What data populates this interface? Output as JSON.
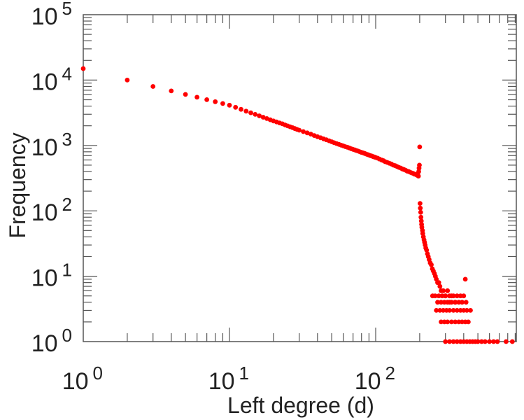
{
  "chart_data": {
    "type": "scatter",
    "title": "",
    "xlabel": "Left degree (d)",
    "ylabel": "Frequency",
    "xscale": "log",
    "yscale": "log",
    "xlim": [
      1,
      930
    ],
    "ylim": [
      1,
      100000
    ],
    "grid": false,
    "legend": "none",
    "marker_color": "#ff0000",
    "axis_color": "#555555",
    "x_ticks": [
      {
        "base": "10",
        "exp": "0",
        "value": 1
      },
      {
        "base": "10",
        "exp": "1",
        "value": 10
      },
      {
        "base": "10",
        "exp": "2",
        "value": 100
      }
    ],
    "y_ticks": [
      {
        "base": "10",
        "exp": "0",
        "value": 1
      },
      {
        "base": "10",
        "exp": "1",
        "value": 10
      },
      {
        "base": "10",
        "exp": "2",
        "value": 100
      },
      {
        "base": "10",
        "exp": "3",
        "value": 1000
      },
      {
        "base": "10",
        "exp": "4",
        "value": 10000
      },
      {
        "base": "10",
        "exp": "5",
        "value": 100000
      }
    ],
    "series": [
      {
        "name": "frequency",
        "points": [
          [
            1,
            15000
          ],
          [
            2,
            10000
          ],
          [
            3,
            8000
          ],
          [
            4,
            6820
          ],
          [
            5,
            6040
          ],
          [
            6,
            5470
          ],
          [
            7,
            5020
          ],
          [
            8,
            4670
          ],
          [
            9,
            4380
          ],
          [
            10,
            4130
          ],
          [
            11,
            3830
          ],
          [
            12,
            3570
          ],
          [
            13,
            3350
          ],
          [
            14,
            3160
          ],
          [
            15,
            2990
          ],
          [
            16,
            2840
          ],
          [
            17,
            2700
          ],
          [
            18,
            2580
          ],
          [
            19,
            2470
          ],
          [
            20,
            2370
          ],
          [
            21,
            2290
          ],
          [
            22,
            2210
          ],
          [
            23,
            2140
          ],
          [
            24,
            2060
          ],
          [
            25,
            1990
          ],
          [
            26,
            1930
          ],
          [
            27,
            1870
          ],
          [
            28,
            1810
          ],
          [
            29,
            1760
          ],
          [
            30,
            1710
          ],
          [
            32,
            1630
          ],
          [
            34,
            1560
          ],
          [
            36,
            1490
          ],
          [
            38,
            1420
          ],
          [
            40,
            1360
          ],
          [
            42,
            1310
          ],
          [
            44,
            1260
          ],
          [
            46,
            1220
          ],
          [
            48,
            1180
          ],
          [
            50,
            1140
          ],
          [
            52,
            1100
          ],
          [
            54,
            1070
          ],
          [
            56,
            1040
          ],
          [
            58,
            1010
          ],
          [
            60,
            986
          ],
          [
            62,
            960
          ],
          [
            64,
            940
          ],
          [
            66,
            915
          ],
          [
            68,
            890
          ],
          [
            70,
            871
          ],
          [
            72,
            855
          ],
          [
            74,
            835
          ],
          [
            76,
            818
          ],
          [
            78,
            800
          ],
          [
            80,
            784
          ],
          [
            82,
            770
          ],
          [
            84,
            755
          ],
          [
            86,
            740
          ],
          [
            88,
            725
          ],
          [
            90,
            713
          ],
          [
            92,
            700
          ],
          [
            94,
            690
          ],
          [
            96,
            675
          ],
          [
            98,
            665
          ],
          [
            100,
            655
          ],
          [
            103,
            640
          ],
          [
            106,
            620
          ],
          [
            110,
            598
          ],
          [
            113,
            585
          ],
          [
            116,
            565
          ],
          [
            120,
            551
          ],
          [
            124,
            535
          ],
          [
            128,
            520
          ],
          [
            132,
            500
          ],
          [
            136,
            490
          ],
          [
            140,
            476
          ],
          [
            144,
            462
          ],
          [
            148,
            452
          ],
          [
            152,
            438
          ],
          [
            156,
            428
          ],
          [
            160,
            419
          ],
          [
            164,
            405
          ],
          [
            168,
            400
          ],
          [
            172,
            390
          ],
          [
            176,
            380
          ],
          [
            180,
            375
          ],
          [
            184,
            365
          ],
          [
            188,
            360
          ],
          [
            190,
            356
          ],
          [
            192,
            350
          ],
          [
            194,
            370
          ],
          [
            196,
            340
          ],
          [
            197,
            400
          ],
          [
            198,
            450
          ],
          [
            199,
            500
          ],
          [
            200,
            950
          ],
          [
            201,
            130
          ],
          [
            202,
            110
          ],
          [
            203,
            95
          ],
          [
            204,
            80
          ],
          [
            205,
            70
          ],
          [
            206,
            62
          ],
          [
            207,
            56
          ],
          [
            209,
            50
          ],
          [
            210,
            45
          ],
          [
            212,
            40
          ],
          [
            214,
            36
          ],
          [
            216,
            33
          ],
          [
            218,
            30
          ],
          [
            220,
            27
          ],
          [
            223,
            25
          ],
          [
            226,
            22
          ],
          [
            229,
            20
          ],
          [
            232,
            18
          ],
          [
            236,
            16
          ],
          [
            240,
            15
          ],
          [
            244,
            13
          ],
          [
            248,
            12
          ],
          [
            252,
            11
          ],
          [
            256,
            10
          ],
          [
            260,
            9
          ],
          [
            265,
            8
          ],
          [
            270,
            8
          ],
          [
            275,
            7
          ],
          [
            280,
            6
          ],
          [
            290,
            6
          ],
          [
            300,
            5
          ],
          [
            310,
            6
          ],
          [
            320,
            4
          ],
          [
            330,
            5
          ],
          [
            350,
            4
          ],
          [
            410,
            9
          ],
          [
            245,
            5
          ],
          [
            255,
            5
          ],
          [
            270,
            5
          ],
          [
            285,
            5
          ],
          [
            300,
            5
          ],
          [
            320,
            5
          ],
          [
            340,
            5
          ],
          [
            360,
            5
          ],
          [
            380,
            5
          ],
          [
            400,
            5
          ],
          [
            265,
            4
          ],
          [
            280,
            4
          ],
          [
            295,
            4
          ],
          [
            310,
            4
          ],
          [
            330,
            4
          ],
          [
            350,
            4
          ],
          [
            370,
            4
          ],
          [
            390,
            4
          ],
          [
            415,
            4
          ],
          [
            260,
            3
          ],
          [
            275,
            3
          ],
          [
            290,
            3
          ],
          [
            305,
            3
          ],
          [
            320,
            3
          ],
          [
            340,
            3
          ],
          [
            360,
            3
          ],
          [
            380,
            3
          ],
          [
            400,
            3
          ],
          [
            420,
            3
          ],
          [
            445,
            3
          ],
          [
            280,
            2
          ],
          [
            295,
            2
          ],
          [
            310,
            2
          ],
          [
            330,
            2
          ],
          [
            350,
            2
          ],
          [
            370,
            2
          ],
          [
            390,
            2
          ],
          [
            410,
            2
          ],
          [
            430,
            2
          ],
          [
            300,
            1
          ],
          [
            320,
            1
          ],
          [
            340,
            1
          ],
          [
            360,
            1
          ],
          [
            380,
            1
          ],
          [
            400,
            1
          ],
          [
            420,
            1
          ],
          [
            440,
            1
          ],
          [
            460,
            1
          ],
          [
            480,
            1
          ],
          [
            500,
            1
          ],
          [
            530,
            1
          ],
          [
            560,
            1
          ],
          [
            600,
            1
          ],
          [
            640,
            1
          ],
          [
            680,
            1
          ],
          [
            780,
            1
          ],
          [
            860,
            1
          ]
        ]
      }
    ]
  }
}
